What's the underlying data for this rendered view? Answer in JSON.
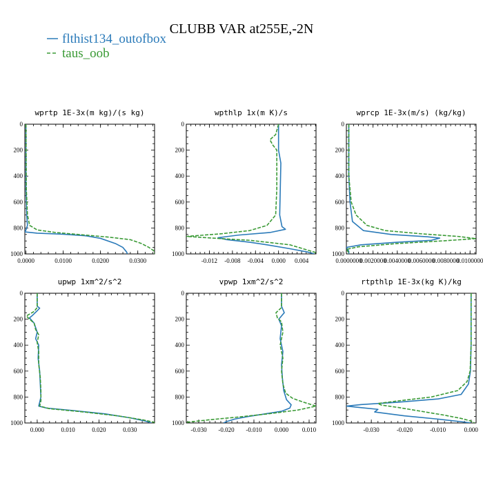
{
  "title": "CLUBB VAR at255E,-2N",
  "legend": [
    {
      "name": "flthist134_outofbox",
      "color": "#2a7ab9",
      "dash": "solid"
    },
    {
      "name": "taus_oob",
      "color": "#3a9a35",
      "dash": "dashed"
    }
  ],
  "chart_data": [
    {
      "type": "line",
      "title": "wprtp  1E-3x(m kg)/(s kg)",
      "xlim": [
        -0.0003,
        0.0345
      ],
      "ylim": [
        1000,
        0
      ],
      "xticks": [
        0.0,
        0.01,
        0.02,
        0.03
      ],
      "xtick_labels": [
        "0.0000",
        "0.0100",
        "0.0200",
        "0.0300"
      ],
      "yticks": [
        0,
        200,
        400,
        600,
        800,
        1000
      ],
      "series": [
        {
          "name": "flthist134_outofbox",
          "points": [
            [
              0,
              0
            ],
            [
              0,
              500
            ],
            [
              0.0002,
              700
            ],
            [
              0.0004,
              780
            ],
            [
              0,
              815
            ],
            [
              -0.0003,
              830
            ],
            [
              0.003,
              840
            ],
            [
              0.01,
              848
            ],
            [
              0.016,
              860
            ],
            [
              0.02,
              880
            ],
            [
              0.024,
              920
            ],
            [
              0.026,
              950
            ],
            [
              0.027,
              985
            ],
            [
              0.0272,
              1000
            ]
          ]
        },
        {
          "name": "taus_oob",
          "points": [
            [
              0,
              0
            ],
            [
              0.0001,
              500
            ],
            [
              0.0004,
              700
            ],
            [
              0.001,
              780
            ],
            [
              0.003,
              815
            ],
            [
              0.008,
              835
            ],
            [
              0.014,
              850
            ],
            [
              0.022,
              870
            ],
            [
              0.028,
              890
            ],
            [
              0.031,
              920
            ],
            [
              0.033,
              950
            ],
            [
              0.0345,
              980
            ],
            [
              0.0345,
              1000
            ]
          ]
        }
      ]
    },
    {
      "type": "line",
      "title": "wpthlp  1x(m K)/s",
      "xlim": [
        -0.016,
        0.0065
      ],
      "ylim": [
        1000,
        0
      ],
      "xticks": [
        -0.012,
        -0.008,
        -0.004,
        0.0,
        0.004
      ],
      "xtick_labels": [
        "-0.012",
        "-0.008",
        "-0.004",
        "0.000",
        "0.004"
      ],
      "yticks": [
        0,
        200,
        400,
        600,
        800,
        1000
      ],
      "series": [
        {
          "name": "flthist134_outofbox",
          "points": [
            [
              0,
              0
            ],
            [
              0,
              200
            ],
            [
              0.0004,
              300
            ],
            [
              0.0003,
              500
            ],
            [
              0.0002,
              700
            ],
            [
              0.0006,
              790
            ],
            [
              0.0012,
              810
            ],
            [
              -0.0015,
              835
            ],
            [
              -0.007,
              855
            ],
            [
              -0.0105,
              875
            ],
            [
              -0.009,
              890
            ],
            [
              -0.005,
              910
            ],
            [
              -0.002,
              930
            ],
            [
              0.002,
              960
            ],
            [
              0.005,
              985
            ],
            [
              0.0062,
              1000
            ]
          ]
        },
        {
          "name": "taus_oob",
          "points": [
            [
              0,
              0
            ],
            [
              -0.0005,
              80
            ],
            [
              -0.0015,
              120
            ],
            [
              -0.001,
              160
            ],
            [
              -0.0003,
              200
            ],
            [
              -0.0003,
              300
            ],
            [
              -0.0003,
              500
            ],
            [
              -0.0005,
              700
            ],
            [
              -0.002,
              780
            ],
            [
              -0.005,
              820
            ],
            [
              -0.01,
              845
            ],
            [
              -0.016,
              865
            ],
            [
              -0.01,
              882
            ],
            [
              -0.005,
              895
            ],
            [
              0.002,
              930
            ],
            [
              0.0065,
              990
            ],
            [
              0.0065,
              1000
            ]
          ]
        }
      ]
    },
    {
      "type": "line",
      "title": "wprcp  1E-3x(m/s) (kg/kg)",
      "xlim": [
        -0.0002,
        0.0105
      ],
      "ylim": [
        1000,
        0
      ],
      "xticks": [
        0.0,
        0.002,
        0.004,
        0.006,
        0.008,
        0.01
      ],
      "xtick_labels": [
        "0.0000000",
        "0.0020000",
        "0.0040000",
        "0.0060000",
        "0.0080000",
        "0.0100000"
      ],
      "yticks": [
        0,
        200,
        400,
        600,
        800,
        1000
      ],
      "series": [
        {
          "name": "flthist134_outofbox",
          "points": [
            [
              0,
              0
            ],
            [
              0,
              400
            ],
            [
              0.0001,
              600
            ],
            [
              0.0003,
              750
            ],
            [
              0.0012,
              820
            ],
            [
              0.0035,
              850
            ],
            [
              0.0065,
              868
            ],
            [
              0.0075,
              878
            ],
            [
              0.0068,
              895
            ],
            [
              0.004,
              910
            ],
            [
              0.001,
              930
            ],
            [
              -0.0002,
              950
            ],
            [
              0,
              980
            ],
            [
              0,
              1000
            ]
          ]
        },
        {
          "name": "taus_oob",
          "points": [
            [
              0,
              0
            ],
            [
              0,
              400
            ],
            [
              0.0002,
              600
            ],
            [
              0.0006,
              700
            ],
            [
              0.0015,
              780
            ],
            [
              0.003,
              820
            ],
            [
              0.006,
              845
            ],
            [
              0.009,
              865
            ],
            [
              0.0105,
              882
            ],
            [
              0.008,
              898
            ],
            [
              0.004,
              920
            ],
            [
              0.0008,
              945
            ],
            [
              -0.0002,
              965
            ],
            [
              0,
              990
            ],
            [
              0,
              1000
            ]
          ]
        }
      ]
    },
    {
      "type": "line",
      "title": "upwp  1xm^2/s^2",
      "xlim": [
        -0.004,
        0.038
      ],
      "ylim": [
        1000,
        0
      ],
      "xticks": [
        0.0,
        0.01,
        0.02,
        0.03
      ],
      "xtick_labels": [
        "0.000",
        "0.010",
        "0.020",
        "0.030"
      ],
      "yticks": [
        0,
        200,
        400,
        600,
        800,
        1000
      ],
      "series": [
        {
          "name": "flthist134_outofbox",
          "points": [
            [
              0,
              0
            ],
            [
              0,
              100
            ],
            [
              0.0008,
              115
            ],
            [
              0,
              135
            ],
            [
              -0.0015,
              170
            ],
            [
              -0.0025,
              190
            ],
            [
              -0.001,
              230
            ],
            [
              0,
              300
            ],
            [
              -0.0005,
              350
            ],
            [
              0.0005,
              400
            ],
            [
              0.0003,
              500
            ],
            [
              0.0008,
              600
            ],
            [
              0.001,
              700
            ],
            [
              0.0012,
              800
            ],
            [
              0.0005,
              870
            ],
            [
              0.003,
              885
            ],
            [
              0.012,
              905
            ],
            [
              0.022,
              930
            ],
            [
              0.03,
              960
            ],
            [
              0.035,
              985
            ],
            [
              0.037,
              1000
            ]
          ]
        },
        {
          "name": "taus_oob",
          "points": [
            [
              0,
              0
            ],
            [
              0,
              110
            ],
            [
              -0.001,
              140
            ],
            [
              -0.0035,
              175
            ],
            [
              -0.0025,
              200
            ],
            [
              -0.001,
              230
            ],
            [
              -0.0005,
              280
            ],
            [
              0.0005,
              320
            ],
            [
              0,
              380
            ],
            [
              0.0005,
              450
            ],
            [
              0.0005,
              550
            ],
            [
              0.001,
              650
            ],
            [
              0.0012,
              750
            ],
            [
              0.0012,
              830
            ],
            [
              0.0008,
              870
            ],
            [
              0.004,
              890
            ],
            [
              0.015,
              915
            ],
            [
              0.026,
              945
            ],
            [
              0.034,
              975
            ],
            [
              0.038,
              995
            ],
            [
              0.038,
              1000
            ]
          ]
        }
      ]
    },
    {
      "type": "line",
      "title": "vpwp  1xm^2/s^2",
      "xlim": [
        -0.0345,
        0.0125
      ],
      "ylim": [
        1000,
        0
      ],
      "xticks": [
        -0.03,
        -0.02,
        -0.01,
        0.0,
        0.01
      ],
      "xtick_labels": [
        "-0.030",
        "-0.020",
        "-0.010",
        "0.000",
        "0.010"
      ],
      "yticks": [
        0,
        200,
        400,
        600,
        800,
        1000
      ],
      "series": [
        {
          "name": "flthist134_outofbox",
          "points": [
            [
              0,
              0
            ],
            [
              0,
              100
            ],
            [
              0.001,
              150
            ],
            [
              -0.001,
              200
            ],
            [
              0,
              250
            ],
            [
              -0.0005,
              350
            ],
            [
              0.0005,
              450
            ],
            [
              0,
              550
            ],
            [
              0.0003,
              650
            ],
            [
              0.0008,
              750
            ],
            [
              0.0018,
              820
            ],
            [
              0.0035,
              860
            ],
            [
              0.003,
              885
            ],
            [
              0,
              910
            ],
            [
              -0.006,
              930
            ],
            [
              -0.012,
              950
            ],
            [
              -0.017,
              970
            ],
            [
              -0.02,
              990
            ],
            [
              -0.021,
              1000
            ]
          ]
        },
        {
          "name": "taus_oob",
          "points": [
            [
              0,
              0
            ],
            [
              0,
              110
            ],
            [
              -0.002,
              150
            ],
            [
              -0.0015,
              190
            ],
            [
              0,
              220
            ],
            [
              0.0005,
              300
            ],
            [
              -0.0005,
              400
            ],
            [
              0.0005,
              500
            ],
            [
              0,
              600
            ],
            [
              0.0005,
              700
            ],
            [
              0.0015,
              770
            ],
            [
              0.004,
              810
            ],
            [
              0.008,
              840
            ],
            [
              0.0125,
              870
            ],
            [
              0.006,
              900
            ],
            [
              -0.005,
              930
            ],
            [
              -0.016,
              955
            ],
            [
              -0.026,
              975
            ],
            [
              -0.0345,
              995
            ],
            [
              -0.0345,
              1000
            ]
          ]
        }
      ]
    },
    {
      "type": "line",
      "title": "rtpthlp  1E-3x(kg K)/kg",
      "xlim": [
        -0.0375,
        0.0015
      ],
      "ylim": [
        1000,
        0
      ],
      "xticks": [
        -0.03,
        -0.02,
        -0.01,
        0.0
      ],
      "xtick_labels": [
        "-0.030",
        "-0.020",
        "-0.010",
        "0.000"
      ],
      "yticks": [
        0,
        200,
        400,
        600,
        800,
        1000
      ],
      "series": [
        {
          "name": "flthist134_outofbox",
          "points": [
            [
              0,
              0
            ],
            [
              0,
              400
            ],
            [
              -0.0002,
              600
            ],
            [
              -0.0008,
              700
            ],
            [
              -0.003,
              780
            ],
            [
              -0.01,
              815
            ],
            [
              -0.022,
              840
            ],
            [
              -0.033,
              858
            ],
            [
              -0.0375,
              870
            ],
            [
              -0.033,
              882
            ],
            [
              -0.028,
              895
            ],
            [
              -0.029,
              915
            ],
            [
              -0.02,
              945
            ],
            [
              -0.01,
              970
            ],
            [
              -0.003,
              990
            ],
            [
              0,
              1000
            ]
          ]
        },
        {
          "name": "taus_oob",
          "points": [
            [
              0,
              0
            ],
            [
              0,
              400
            ],
            [
              -0.0003,
              600
            ],
            [
              -0.0012,
              680
            ],
            [
              -0.004,
              750
            ],
            [
              -0.012,
              800
            ],
            [
              -0.022,
              830
            ],
            [
              -0.028,
              850
            ],
            [
              -0.027,
              862
            ],
            [
              -0.022,
              880
            ],
            [
              -0.015,
              910
            ],
            [
              -0.008,
              940
            ],
            [
              -0.003,
              965
            ],
            [
              0,
              985
            ],
            [
              0.001,
              1000
            ]
          ]
        }
      ]
    }
  ]
}
